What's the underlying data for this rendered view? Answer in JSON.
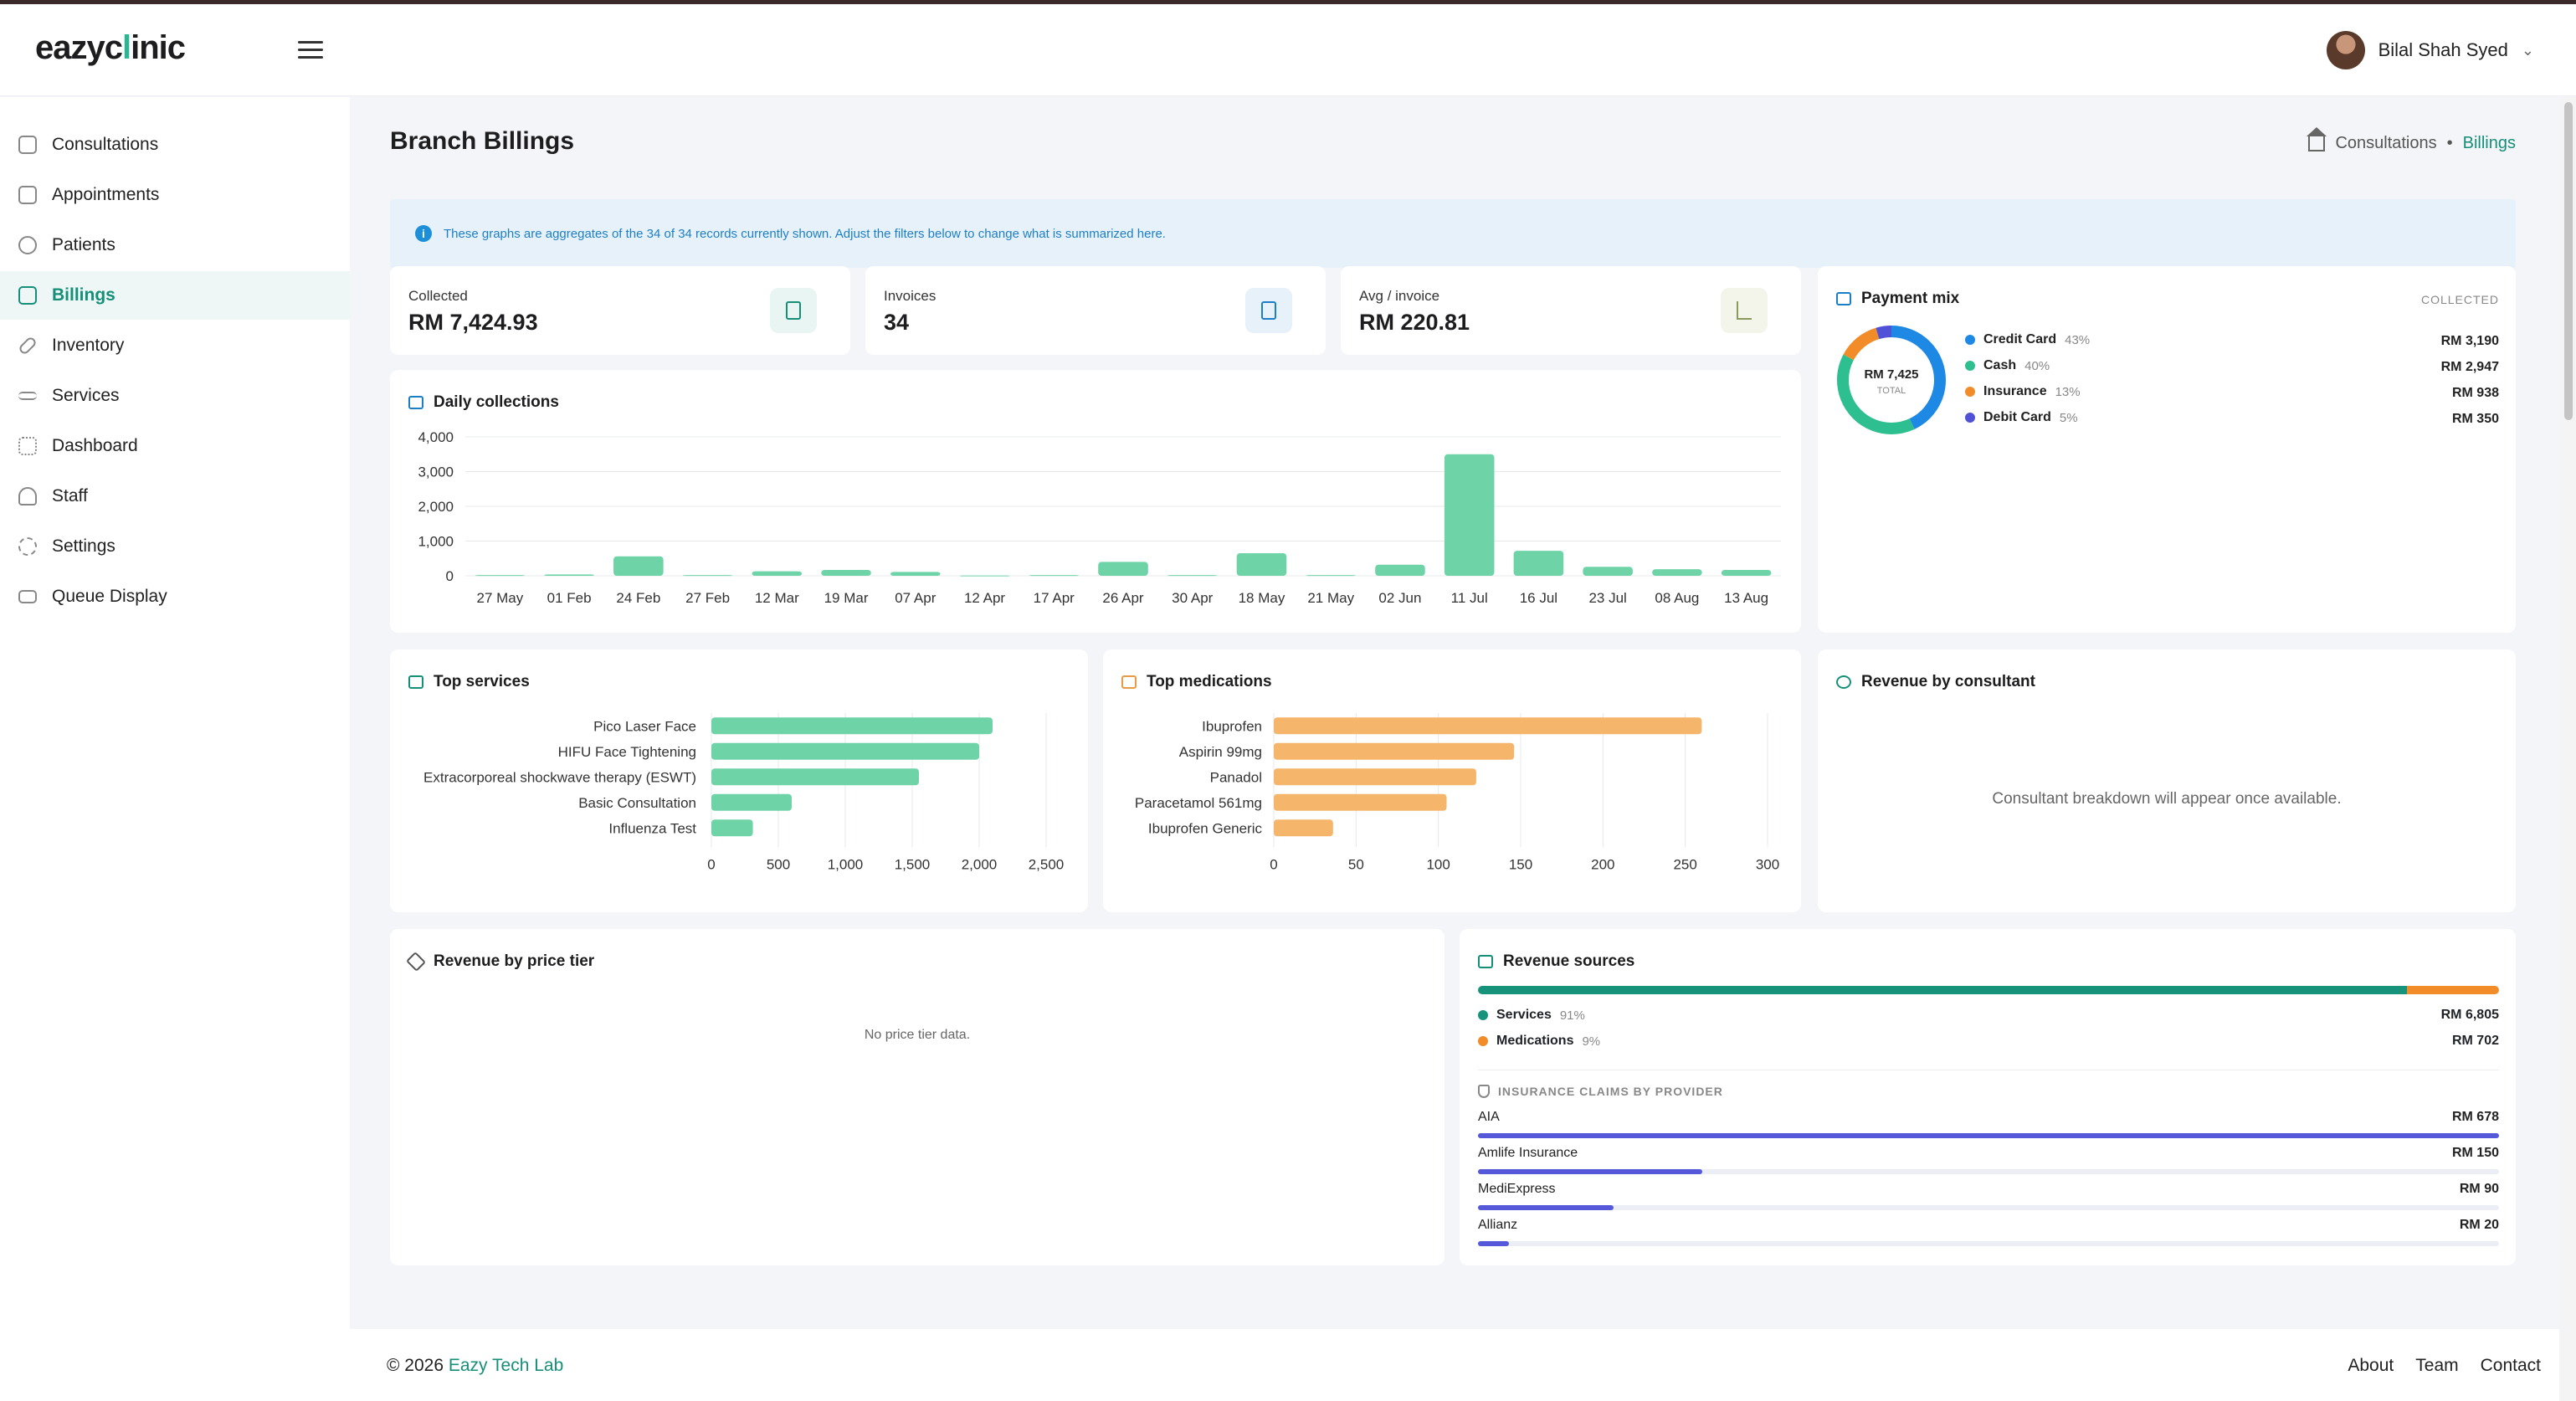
{
  "app": {
    "logo_prefix": "eazyc",
    "logo_mark": "l",
    "logo_suffix": "inic"
  },
  "user": {
    "name": "Bilal Shah Syed"
  },
  "sidebar": {
    "items": [
      {
        "label": "Consultations",
        "icon": "stethoscope-icon"
      },
      {
        "label": "Appointments",
        "icon": "calendar-icon"
      },
      {
        "label": "Patients",
        "icon": "smile-icon"
      },
      {
        "label": "Billings",
        "icon": "billing-icon",
        "active": true
      },
      {
        "label": "Inventory",
        "icon": "pill-icon"
      },
      {
        "label": "Services",
        "icon": "services-icon"
      },
      {
        "label": "Dashboard",
        "icon": "grid-icon"
      },
      {
        "label": "Staff",
        "icon": "users-icon"
      },
      {
        "label": "Settings",
        "icon": "gear-icon"
      },
      {
        "label": "Queue Display",
        "icon": "monitor-icon"
      }
    ]
  },
  "page": {
    "title": "Branch Billings",
    "breadcrumb": [
      "Consultations",
      "Billings"
    ]
  },
  "info": {
    "text": "These graphs are aggregates of the 34 of 34 records currently shown. Adjust the filters below to change what is summarized here."
  },
  "stats": [
    {
      "label": "Collected",
      "value": "RM 7,424.93",
      "icon": "receipt-icon",
      "color": "#168f78"
    },
    {
      "label": "Invoices",
      "value": "34",
      "icon": "document-icon",
      "color": "#1c7fc6"
    },
    {
      "label": "Avg / invoice",
      "value": "RM 220.81",
      "icon": "trend-icon",
      "color": "#8a9a5b"
    }
  ],
  "payment_mix": {
    "title": "Payment mix",
    "tag": "COLLECTED",
    "total": "RM 7,425",
    "total_label": "TOTAL",
    "items": [
      {
        "name": "Credit Card",
        "pct": "43%",
        "amount": "RM 3,190",
        "color": "#1e88e5",
        "value": 3190
      },
      {
        "name": "Cash",
        "pct": "40%",
        "amount": "RM 2,947",
        "color": "#2dbf8f",
        "value": 2947
      },
      {
        "name": "Insurance",
        "pct": "13%",
        "amount": "RM 938",
        "color": "#f28c28",
        "value": 938
      },
      {
        "name": "Debit Card",
        "pct": "5%",
        "amount": "RM 350",
        "color": "#4f52d6",
        "value": 350
      }
    ]
  },
  "chart_data": [
    {
      "type": "bar",
      "title": "Daily collections",
      "categories": [
        "27 May",
        "01 Feb",
        "24 Feb",
        "27 Feb",
        "12 Mar",
        "19 Mar",
        "07 Apr",
        "12 Apr",
        "17 Apr",
        "26 Apr",
        "30 Apr",
        "18 May",
        "21 May",
        "02 Jun",
        "11 Jul",
        "16 Jul",
        "23 Jul",
        "08 Aug",
        "13 Aug"
      ],
      "values": [
        20,
        40,
        560,
        20,
        130,
        170,
        110,
        10,
        20,
        400,
        20,
        650,
        20,
        320,
        3500,
        720,
        260,
        190,
        170
      ],
      "yticks": [
        "0",
        "1,000",
        "2,000",
        "3,000",
        "4,000"
      ],
      "ylim": [
        0,
        4000
      ],
      "color": "#6ed4a8"
    },
    {
      "type": "bar",
      "title": "Top services",
      "categories": [
        "Pico Laser Face",
        "HIFU Face Tightening",
        "Extracorporeal shockwave therapy (ESWT)",
        "Basic Consultation",
        "Influenza Test"
      ],
      "values": [
        2100,
        2000,
        1550,
        600,
        310
      ],
      "xticks": [
        "0",
        "500",
        "1,000",
        "1,500",
        "2,000",
        "2,500"
      ],
      "xlim": [
        0,
        2500
      ],
      "color": "#6ed4a8"
    },
    {
      "type": "bar",
      "title": "Top medications",
      "categories": [
        "Ibuprofen",
        "Aspirin 99mg",
        "Panadol",
        "Paracetamol 561mg",
        "Ibuprofen Generic"
      ],
      "values": [
        260,
        146,
        123,
        105,
        36
      ],
      "xticks": [
        "0",
        "50",
        "100",
        "150",
        "200",
        "250",
        "300"
      ],
      "xlim": [
        0,
        300
      ],
      "color": "#f5b56a"
    }
  ],
  "consultant": {
    "title": "Revenue by consultant",
    "empty": "Consultant breakdown will appear once available."
  },
  "price_tier": {
    "title": "Revenue by price tier",
    "empty": "No price tier data."
  },
  "revenue_sources": {
    "title": "Revenue sources",
    "services": {
      "label": "Services",
      "pct": "91%",
      "amount": "RM 6,805",
      "fraction": 0.91,
      "color": "#17937b"
    },
    "medications": {
      "label": "Medications",
      "pct": "9%",
      "amount": "RM 702",
      "fraction": 0.09,
      "color": "#f28c28"
    },
    "claims_title": "INSURANCE CLAIMS BY PROVIDER",
    "claims": [
      {
        "name": "AIA",
        "amount": "RM 678",
        "fraction": 1.0
      },
      {
        "name": "Amlife Insurance",
        "amount": "RM 150",
        "fraction": 0.22
      },
      {
        "name": "MediExpress",
        "amount": "RM 90",
        "fraction": 0.133
      },
      {
        "name": "Allianz",
        "amount": "RM 20",
        "fraction": 0.03
      }
    ]
  },
  "footer": {
    "copyright": "© 2026",
    "company": "Eazy Tech Lab",
    "links": [
      "About",
      "Team",
      "Contact"
    ]
  }
}
